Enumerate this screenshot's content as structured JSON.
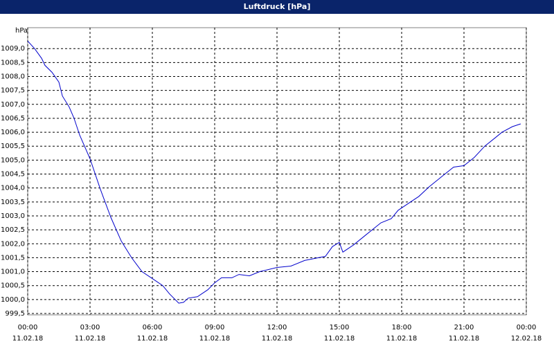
{
  "chart_data": {
    "type": "line",
    "title": "Luftdruck [hPa]",
    "y_unit": "hPa",
    "x": [
      0,
      0.33,
      0.67,
      0.83,
      1.17,
      1.5,
      1.67,
      2,
      2.23,
      2.5,
      3,
      3.5,
      4,
      4.5,
      5,
      5.5,
      6,
      6.5,
      6.83,
      7.27,
      7.5,
      7.73,
      8.17,
      8.67,
      9,
      9.33,
      9.83,
      10.17,
      10.67,
      11.17,
      12,
      12.67,
      13.33,
      14,
      14.33,
      14.67,
      15,
      15.17,
      15.67,
      16.33,
      17,
      17.5,
      17.83,
      18.33,
      18.83,
      19.33,
      20,
      20.5,
      21,
      21.5,
      22,
      22.5,
      22.83,
      23.33,
      23.73
    ],
    "series": [
      {
        "color": "#0000cc",
        "values": [
          1009.27,
          1009.0,
          1008.65,
          1008.4,
          1008.15,
          1007.8,
          1007.3,
          1006.9,
          1006.5,
          1005.9,
          1005.05,
          1003.95,
          1002.95,
          1002.1,
          1001.5,
          1001.0,
          1000.75,
          1000.5,
          1000.2,
          999.87,
          999.9,
          1000.05,
          1000.1,
          1000.35,
          1000.6,
          1000.78,
          1000.78,
          1000.9,
          1000.85,
          1001.0,
          1001.15,
          1001.2,
          1001.4,
          1001.5,
          1001.55,
          1001.9,
          1002.05,
          1001.7,
          1001.95,
          1002.35,
          1002.75,
          1002.9,
          1003.2,
          1003.45,
          1003.7,
          1004.05,
          1004.45,
          1004.75,
          1004.8,
          1005.1,
          1005.5,
          1005.8,
          1006.0,
          1006.2,
          1006.3
        ]
      }
    ],
    "xlim": [
      0,
      24
    ],
    "ylim": [
      999.45,
      1009.75
    ],
    "xticks": [
      {
        "value": 0,
        "label": "00:00"
      },
      {
        "value": 3,
        "label": "03:00"
      },
      {
        "value": 6,
        "label": "06:00"
      },
      {
        "value": 9,
        "label": "09:00"
      },
      {
        "value": 12,
        "label": "12:00"
      },
      {
        "value": 15,
        "label": "15:00"
      },
      {
        "value": 18,
        "label": "18:00"
      },
      {
        "value": 21,
        "label": "21:00"
      },
      {
        "value": 24,
        "label": "00:00"
      }
    ],
    "xtick_dates": [
      "11.02.18",
      "11.02.18",
      "11.02.18",
      "11.02.18",
      "11.02.18",
      "11.02.18",
      "11.02.18",
      "11.02.18",
      "12.02.18"
    ],
    "yticks": [
      {
        "value": 999.5,
        "label": "999,5"
      },
      {
        "value": 1000.0,
        "label": "1000,0"
      },
      {
        "value": 1000.5,
        "label": "1000,5"
      },
      {
        "value": 1001.0,
        "label": "1001,0"
      },
      {
        "value": 1001.5,
        "label": "1001,5"
      },
      {
        "value": 1002.0,
        "label": "1002,0"
      },
      {
        "value": 1002.5,
        "label": "1002,5"
      },
      {
        "value": 1003.0,
        "label": "1003,0"
      },
      {
        "value": 1003.5,
        "label": "1003,5"
      },
      {
        "value": 1004.0,
        "label": "1004,0"
      },
      {
        "value": 1004.5,
        "label": "1004,5"
      },
      {
        "value": 1005.0,
        "label": "1005,0"
      },
      {
        "value": 1005.5,
        "label": "1005,5"
      },
      {
        "value": 1006.0,
        "label": "1006,0"
      },
      {
        "value": 1006.5,
        "label": "1006,5"
      },
      {
        "value": 1007.0,
        "label": "1007,0"
      },
      {
        "value": 1007.5,
        "label": "1007,5"
      },
      {
        "value": 1008.0,
        "label": "1008,0"
      },
      {
        "value": 1008.5,
        "label": "1008,5"
      },
      {
        "value": 1009.0,
        "label": "1009,0"
      }
    ],
    "grid": true
  }
}
